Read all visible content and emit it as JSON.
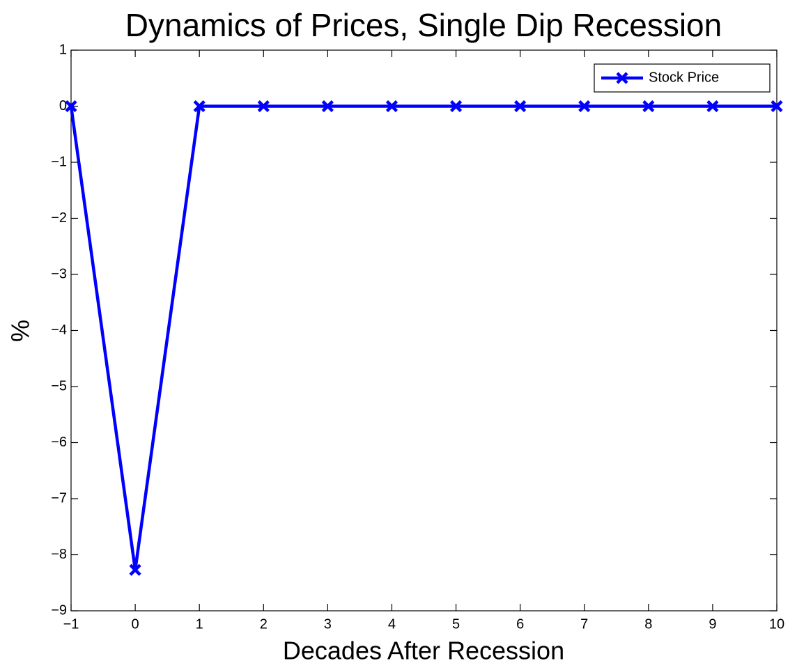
{
  "chart_data": {
    "type": "line",
    "title": "Dynamics of Prices, Single Dip Recession",
    "x_label": "Decades After Recession",
    "y_label": "%",
    "x": [
      -1,
      0,
      1,
      2,
      3,
      4,
      5,
      6,
      7,
      8,
      9,
      10
    ],
    "series": [
      {
        "name": "Stock Price",
        "color": "#0000ff",
        "values": [
          0,
          -8.27,
          0,
          0,
          0,
          0,
          0,
          0,
          0,
          0,
          0,
          0
        ]
      }
    ],
    "xlim": [
      -1,
      10
    ],
    "ylim": [
      -9,
      1
    ],
    "xticks": [
      {
        "value": -1,
        "label": "−1"
      },
      0,
      1,
      2,
      3,
      4,
      5,
      6,
      7,
      8,
      9,
      10
    ],
    "yticks": [
      {
        "value": -9,
        "label": "−9"
      },
      {
        "value": -8,
        "label": "−8"
      },
      {
        "value": -7,
        "label": "−7"
      },
      {
        "value": -6,
        "label": "−6"
      },
      {
        "value": -5,
        "label": "−5"
      },
      {
        "value": -4,
        "label": "−4"
      },
      {
        "value": -3,
        "label": "−3"
      },
      {
        "value": -2,
        "label": "−2"
      },
      {
        "value": -1,
        "label": "−1"
      },
      0,
      1
    ],
    "grid": false,
    "legend": "upper right"
  }
}
